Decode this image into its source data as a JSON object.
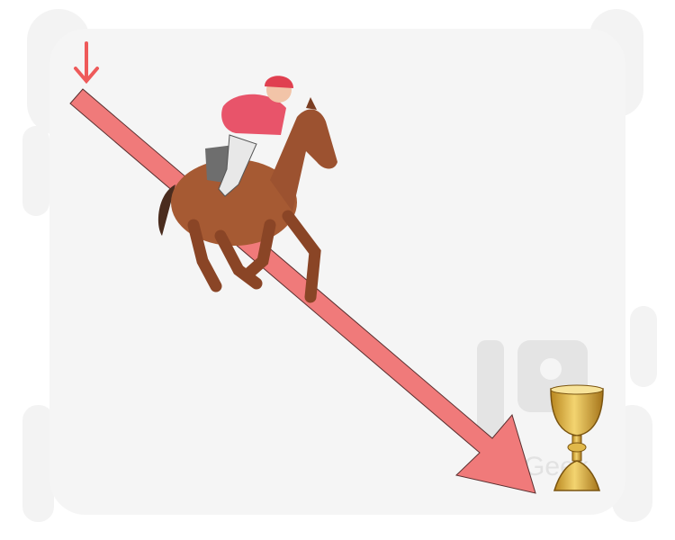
{
  "watermark": "LanGeek"
}
